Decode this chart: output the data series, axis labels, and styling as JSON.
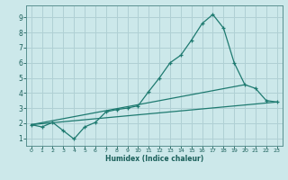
{
  "xlabel": "Humidex (Indice chaleur)",
  "bg_color": "#cce8ea",
  "grid_color": "#b0d0d4",
  "line_color": "#1e7a70",
  "xlim": [
    -0.5,
    23.5
  ],
  "ylim": [
    0.5,
    9.8
  ],
  "x_ticks": [
    0,
    1,
    2,
    3,
    4,
    5,
    6,
    7,
    8,
    9,
    10,
    11,
    12,
    13,
    14,
    15,
    16,
    17,
    18,
    19,
    20,
    21,
    22,
    23
  ],
  "y_ticks": [
    1,
    2,
    3,
    4,
    5,
    6,
    7,
    8,
    9
  ],
  "line1_x": [
    0,
    1,
    2,
    3,
    4,
    5,
    6,
    7,
    8,
    9,
    10,
    11,
    12,
    13,
    14,
    15,
    16,
    17,
    18,
    19,
    20,
    21,
    22,
    23
  ],
  "line1_y": [
    1.9,
    1.75,
    2.05,
    1.5,
    0.95,
    1.75,
    2.05,
    2.75,
    2.9,
    3.0,
    3.15,
    4.1,
    5.0,
    6.0,
    6.5,
    7.5,
    8.6,
    9.2,
    8.3,
    6.0,
    4.55,
    4.3,
    3.5,
    3.4
  ],
  "line2_x": [
    0,
    23
  ],
  "line2_y": [
    1.9,
    3.4
  ],
  "line3_x": [
    0,
    20
  ],
  "line3_y": [
    1.9,
    4.55
  ]
}
